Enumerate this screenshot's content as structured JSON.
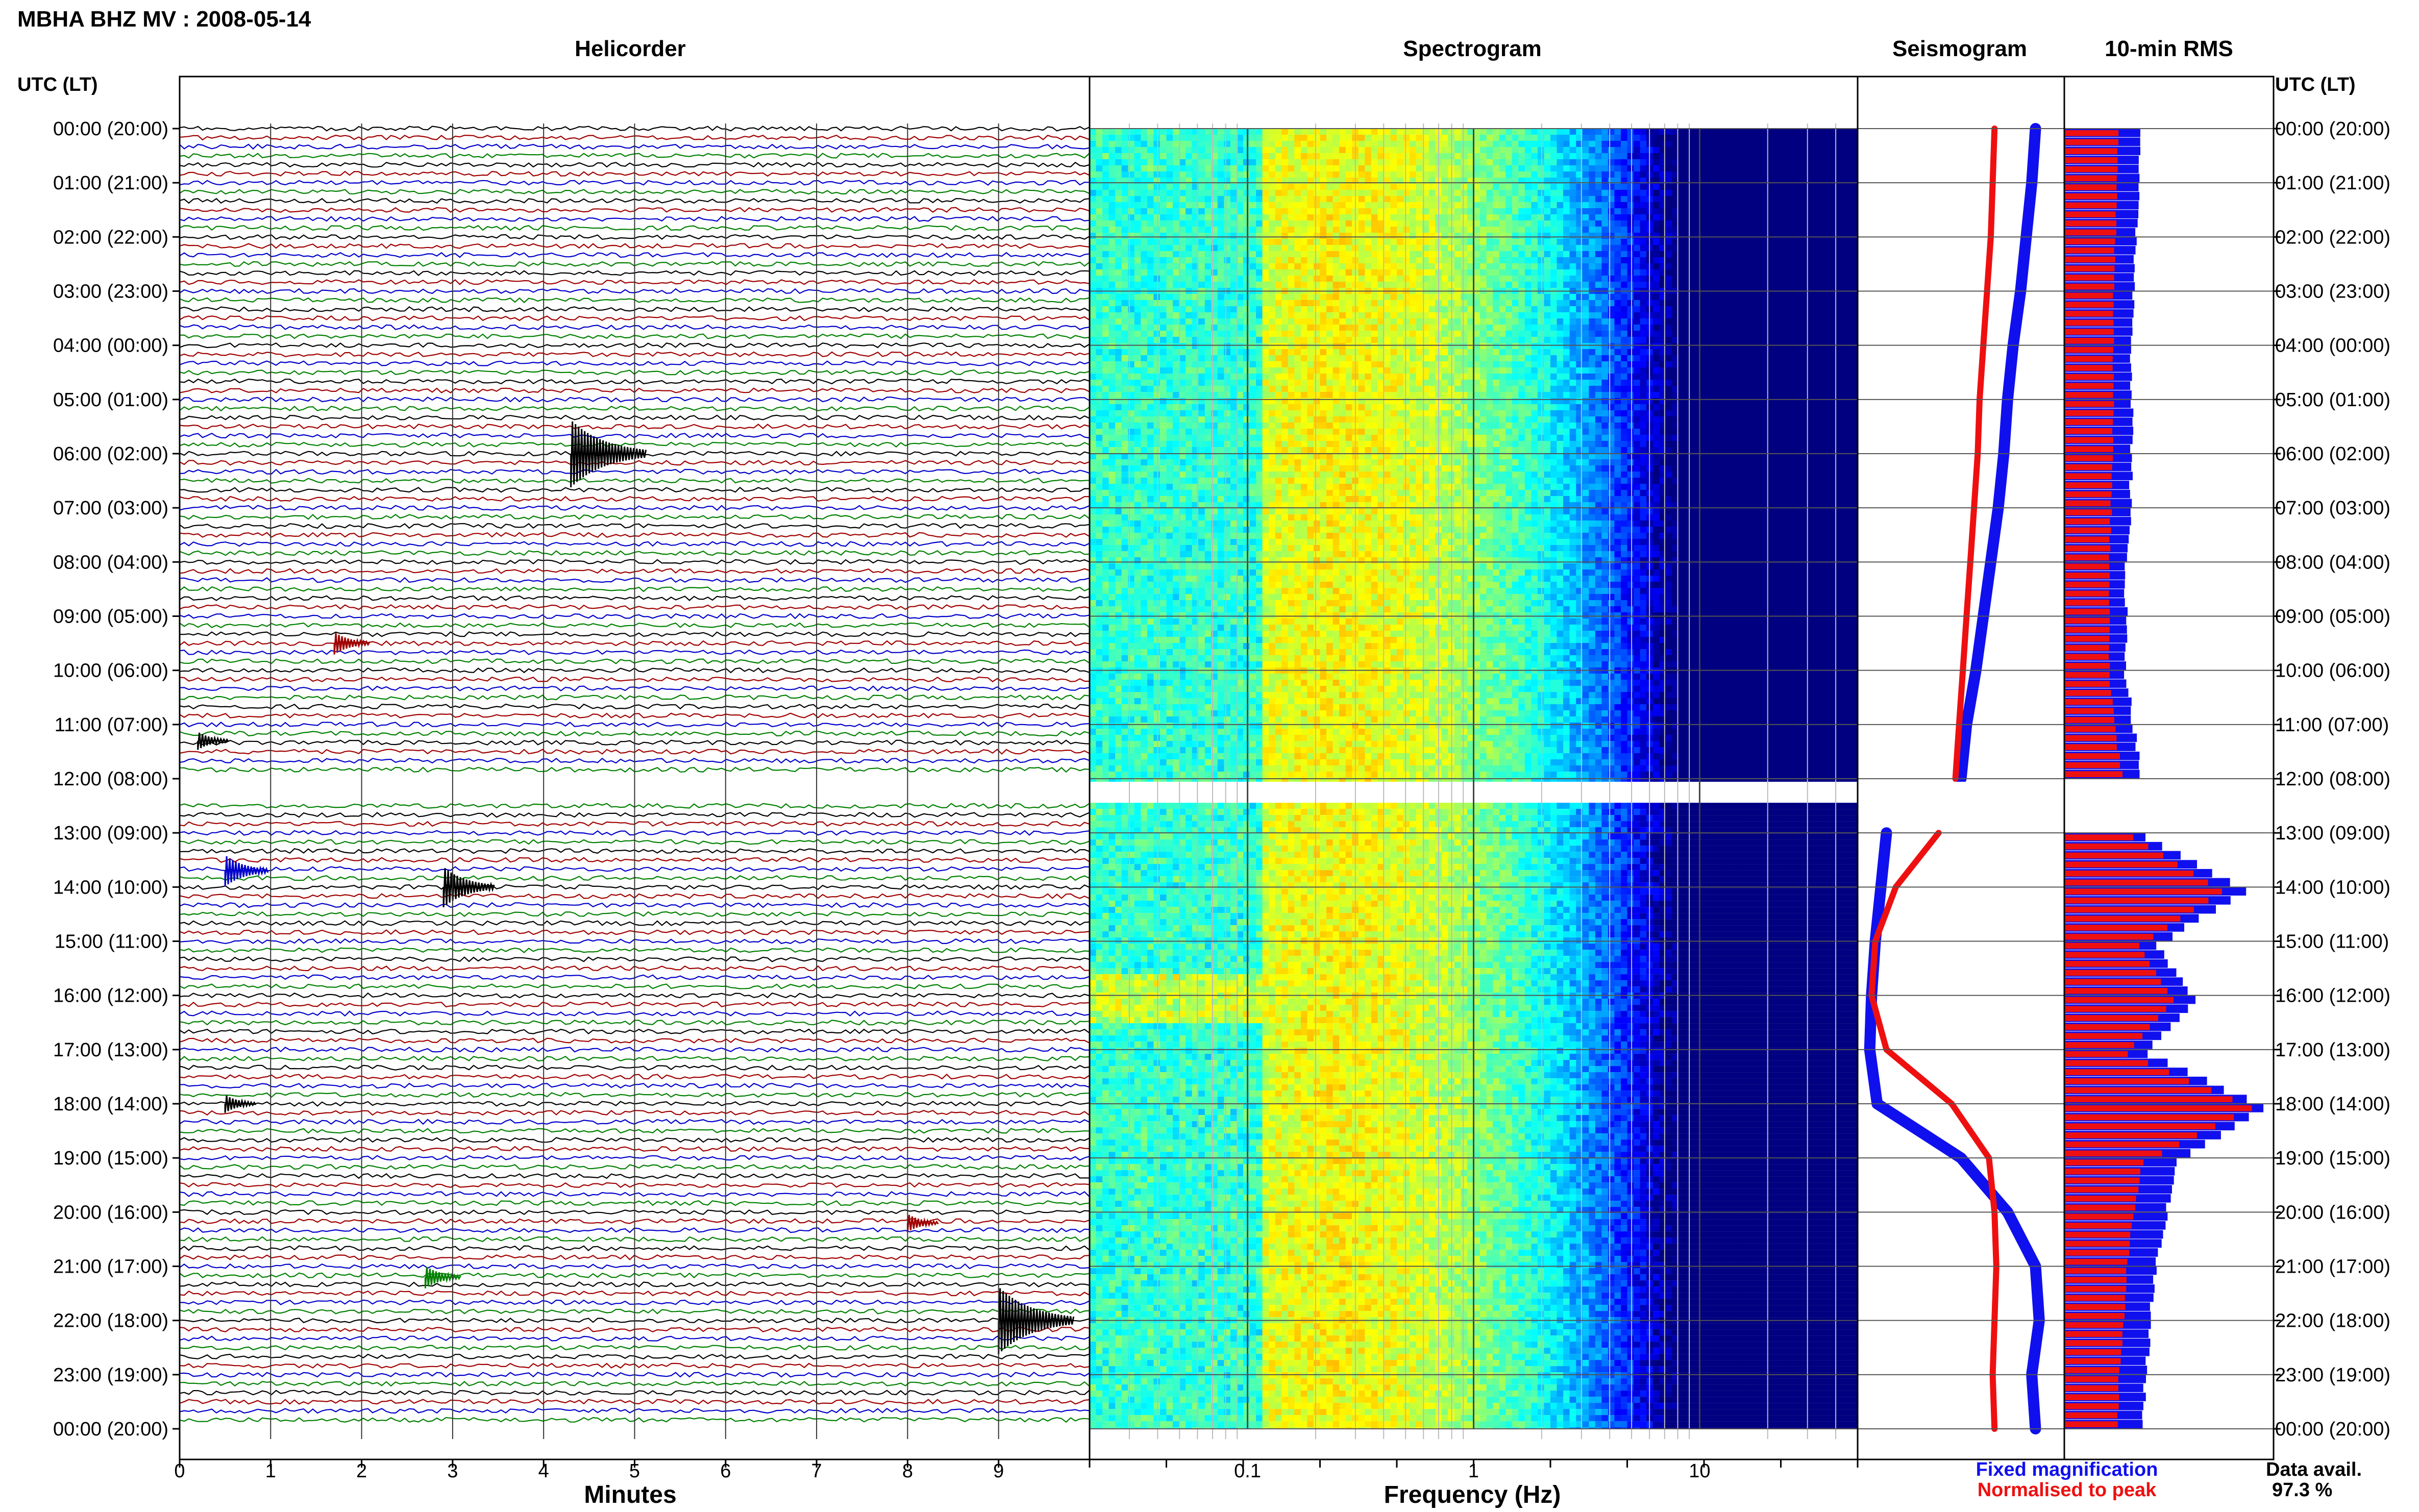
{
  "header": {
    "station_title": "MBHA BHZ MV : 2008-05-14",
    "panel_helicorder": "Helicorder",
    "panel_spectrogram": "Spectrogram",
    "panel_seismogram": "Seismogram",
    "panel_rms": "10-min RMS",
    "time_axis_left": "UTC (LT)",
    "time_axis_right": "UTC (LT)"
  },
  "footer": {
    "xlabel_minutes": "Minutes",
    "xlabel_frequency": "Frequency (Hz)",
    "legend_fixed": "Fixed magnification",
    "legend_normalised": "Normalised to peak",
    "data_avail_label": "Data avail.",
    "data_avail_value": "97.3 %"
  },
  "colors": {
    "fixed_magnification": "#1010ee",
    "normalised_to_peak": "#ee1010",
    "trace_cycle": [
      "#000000",
      "#a00000",
      "#0000cc",
      "#008000"
    ],
    "spectrogram_low": "#00008b",
    "spectrogram_high": "#ffff00"
  },
  "chart_data": [
    {
      "type": "line",
      "name": "helicorder",
      "title": "Helicorder",
      "xlabel": "Minutes",
      "xlim": [
        0,
        10
      ],
      "x_ticks": [
        0,
        1,
        2,
        3,
        4,
        5,
        6,
        7,
        8,
        9
      ],
      "rows_per_hour": 6,
      "gap_hours": [
        12,
        12.5
      ],
      "time_labels": [
        "00:00 (20:00)",
        "01:00 (21:00)",
        "02:00 (22:00)",
        "03:00 (23:00)",
        "04:00 (00:00)",
        "05:00 (01:00)",
        "06:00 (02:00)",
        "07:00 (03:00)",
        "08:00 (04:00)",
        "09:00 (05:00)",
        "10:00 (06:00)",
        "11:00 (07:00)",
        "12:00 (08:00)",
        "13:00 (09:00)",
        "14:00 (10:00)",
        "15:00 (11:00)",
        "16:00 (12:00)",
        "17:00 (13:00)",
        "18:00 (14:00)",
        "19:00 (15:00)",
        "20:00 (16:00)",
        "21:00 (17:00)",
        "22:00 (18:00)",
        "23:00 (19:00)",
        "00:00 (20:00)"
      ],
      "events": [
        {
          "hour": 6.0,
          "minute": 4.3,
          "size": 3.0
        },
        {
          "hour": 9.5,
          "minute": 1.7,
          "size": 1.0
        },
        {
          "hour": 11.3,
          "minute": 0.2,
          "size": 0.8
        },
        {
          "hour": 13.7,
          "minute": 0.5,
          "size": 1.4
        },
        {
          "hour": 14.0,
          "minute": 2.9,
          "size": 1.8
        },
        {
          "hour": 18.0,
          "minute": 0.5,
          "size": 0.8
        },
        {
          "hour": 20.2,
          "minute": 8.0,
          "size": 0.8
        },
        {
          "hour": 21.2,
          "minute": 2.7,
          "size": 1.0
        },
        {
          "hour": 22.0,
          "minute": 9.0,
          "size": 3.0
        }
      ]
    },
    {
      "type": "heatmap",
      "name": "spectrogram",
      "title": "Spectrogram",
      "xlabel": "Frequency (Hz)",
      "x_scale": "log",
      "xlim": [
        0.02,
        50
      ],
      "x_ticks": [
        0.1,
        1,
        10
      ],
      "y_hours": [
        0,
        24
      ],
      "gap_hours": [
        12,
        12.5
      ],
      "microseism_peak_hz": 0.25,
      "colormap": "jet"
    },
    {
      "type": "line",
      "name": "seismogram_rsam",
      "title": "Seismogram",
      "hours": [
        0,
        1,
        2,
        3,
        4,
        5,
        6,
        7,
        8,
        9,
        10,
        11,
        12,
        12.5,
        13,
        14,
        15,
        16,
        17,
        18,
        19,
        20,
        21,
        22,
        23,
        24
      ],
      "series": [
        {
          "name": "Fixed magnification",
          "values": [
            0.9,
            0.88,
            0.85,
            0.82,
            0.78,
            0.75,
            0.73,
            0.7,
            0.66,
            0.62,
            0.58,
            0.53,
            0.5,
            null,
            0.1,
            0.07,
            0.04,
            0.02,
            0.01,
            0.05,
            0.5,
            0.75,
            0.9,
            0.92,
            0.88,
            0.9
          ]
        },
        {
          "name": "Normalised to peak",
          "values": [
            0.68,
            0.67,
            0.66,
            0.64,
            0.62,
            0.6,
            0.59,
            0.57,
            0.55,
            0.53,
            0.51,
            0.49,
            0.47,
            null,
            0.38,
            0.15,
            0.04,
            0.02,
            0.1,
            0.45,
            0.65,
            0.68,
            0.69,
            0.68,
            0.67,
            0.68
          ]
        }
      ]
    },
    {
      "type": "bar",
      "name": "rms_10min",
      "title": "10-min RMS",
      "hours": [
        0,
        1,
        2,
        3,
        4,
        5,
        6,
        7,
        8,
        9,
        10,
        11,
        12,
        13,
        14,
        15,
        16,
        17,
        18,
        19,
        20,
        21,
        22,
        23,
        24
      ],
      "series": [
        {
          "name": "Fixed magnification",
          "values": [
            0.38,
            0.36,
            0.35,
            0.34,
            0.33,
            0.33,
            0.33,
            0.32,
            0.3,
            0.3,
            0.3,
            0.34,
            0.38,
            0.4,
            0.9,
            0.45,
            0.65,
            0.4,
            1.0,
            0.55,
            0.5,
            0.45,
            0.42,
            0.4,
            0.38
          ]
        },
        {
          "name": "Normalised to peak",
          "values": [
            0.28,
            0.27,
            0.26,
            0.25,
            0.25,
            0.25,
            0.25,
            0.24,
            0.23,
            0.23,
            0.23,
            0.26,
            0.3,
            0.35,
            0.8,
            0.38,
            0.55,
            0.32,
            0.95,
            0.4,
            0.35,
            0.32,
            0.3,
            0.28,
            0.27
          ]
        }
      ]
    }
  ]
}
